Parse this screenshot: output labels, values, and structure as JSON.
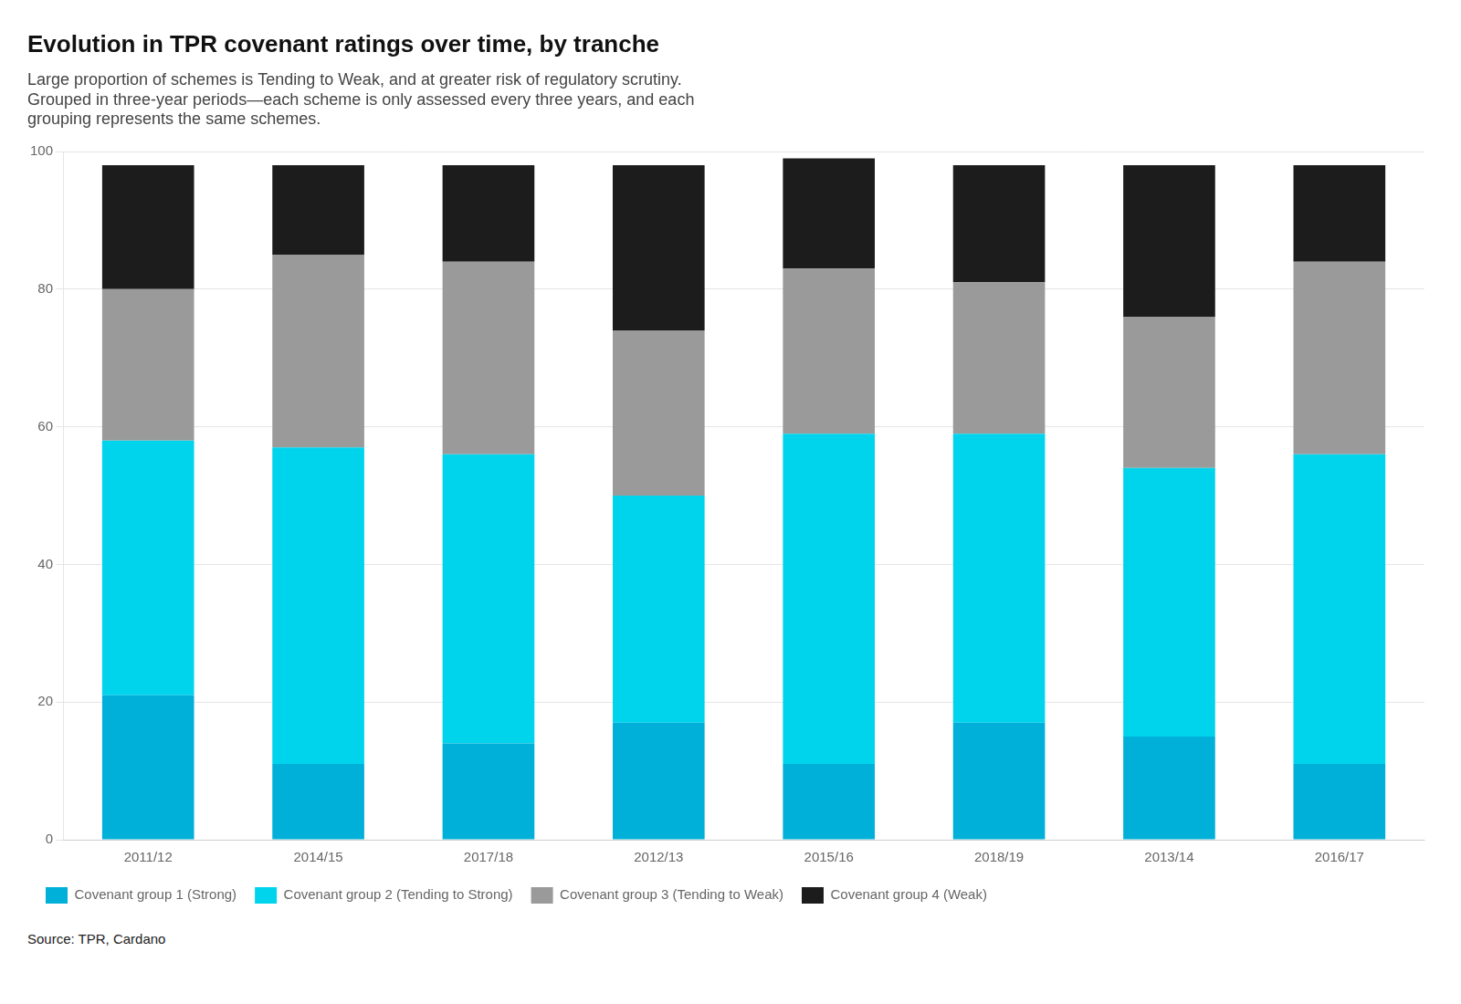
{
  "chart_data": {
    "type": "bar",
    "stacked": true,
    "title": "Evolution in TPR covenant ratings over time, by tranche",
    "subtitle": [
      "Large proportion of schemes is Tending to Weak, and at greater risk of regulatory scrutiny.",
      "Grouped in three-year periods—each scheme is only assessed every three years, and each",
      "grouping represents the same schemes."
    ],
    "annotations": [
      "Source: TPR, Cardano"
    ],
    "categories": [
      "2011/12",
      "2014/15",
      "2017/18",
      "2012/13",
      "2015/16",
      "2018/19",
      "2013/14",
      "2016/17"
    ],
    "series": [
      {
        "name": "Covenant group 1 (Strong)",
        "color": "#00b0d8",
        "values": [
          21,
          11,
          14,
          17,
          11,
          17,
          15,
          11
        ]
      },
      {
        "name": "Covenant group 2 (Tending to Strong)",
        "color": "#00d4ed",
        "values": [
          37,
          46,
          42,
          33,
          48,
          42,
          39,
          45
        ]
      },
      {
        "name": "Covenant group 3 (Tending to Weak)",
        "color": "#9a9a9a",
        "values": [
          22,
          28,
          28,
          24,
          24,
          22,
          22,
          28
        ]
      },
      {
        "name": "Covenant group 4 (Weak)",
        "color": "#1c1c1c",
        "values": [
          18,
          13,
          14,
          24,
          16,
          17,
          22,
          14
        ]
      }
    ],
    "ylim": [
      0,
      100
    ],
    "yticks": [
      0,
      20,
      40,
      60,
      80,
      100
    ],
    "grid": true,
    "legend": "bottom"
  }
}
